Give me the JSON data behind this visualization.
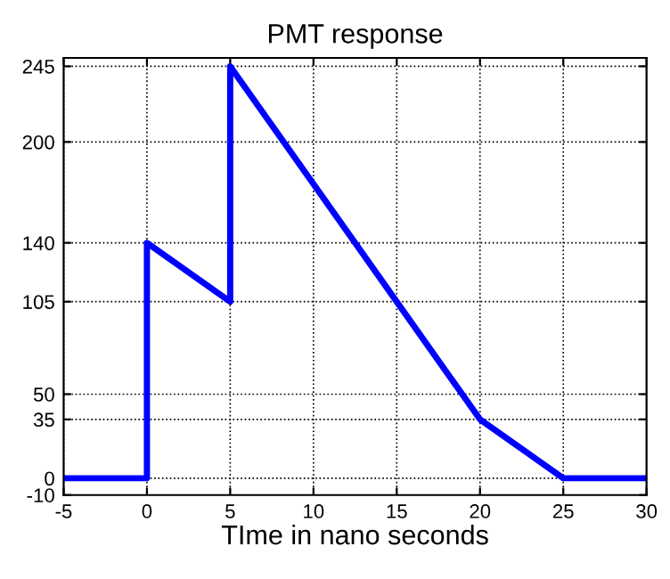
{
  "chart_data": {
    "type": "line",
    "title": "PMT response",
    "xlabel": "TIme in nano seconds",
    "x": [
      -5,
      0,
      0,
      5,
      5,
      20,
      25,
      30
    ],
    "series": [
      {
        "color": "#0000ff",
        "values": [
          0,
          0,
          140,
          105,
          245,
          35,
          0,
          0
        ]
      }
    ],
    "xlim": [
      -5,
      30
    ],
    "xticks": [
      -5,
      0,
      5,
      10,
      15,
      20,
      25,
      30
    ],
    "ylim": [
      -10,
      250
    ],
    "yticks": [
      -10,
      0,
      35,
      50,
      105,
      140,
      200,
      245
    ],
    "grid": true,
    "line_style": "solid",
    "marker": "none"
  }
}
